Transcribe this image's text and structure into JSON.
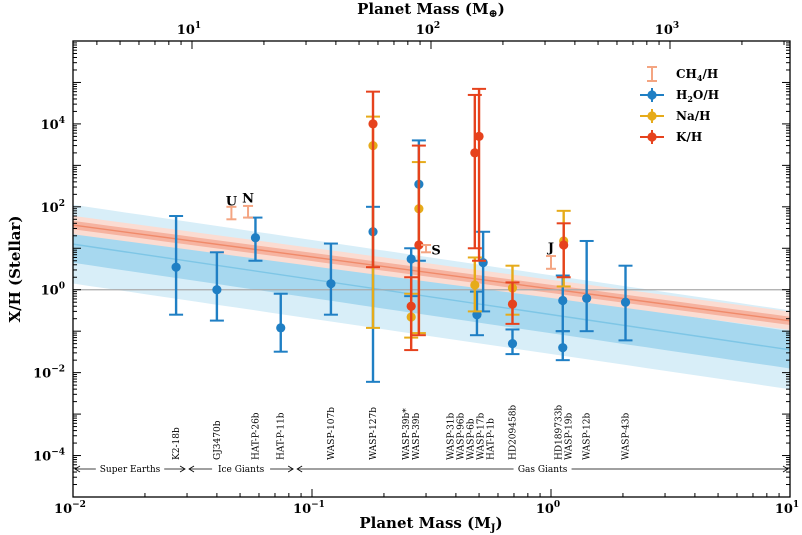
{
  "chart_data": {
    "type": "scatter",
    "xscale": "log",
    "yscale": "log",
    "xlim": [
      0.01,
      10
    ],
    "ylim": [
      1e-05,
      1000000
    ],
    "xlabel": "Planet Mass (M",
    "xlabel_sub": "J",
    "ylabel": "X/H (Stellar)",
    "x2label": "Planet Mass (M",
    "x2label_sym": "⊕",
    "x_ticks": [
      {
        "value": 0.01,
        "base": "10",
        "exp": "−2"
      },
      {
        "value": 0.1,
        "base": "10",
        "exp": "−1"
      },
      {
        "value": 1,
        "base": "10",
        "exp": "0"
      },
      {
        "value": 10,
        "base": "10",
        "exp": "1"
      }
    ],
    "x2_ticks": [
      {
        "value": 10,
        "base": "10",
        "exp": "1"
      },
      {
        "value": 100,
        "base": "10",
        "exp": "2"
      },
      {
        "value": 1000,
        "base": "10",
        "exp": "3"
      }
    ],
    "earth_per_jupiter": 317.8,
    "y_ticks": [
      {
        "value": 0.0001,
        "base": "10",
        "exp": "−4"
      },
      {
        "value": 0.01,
        "base": "10",
        "exp": "−2"
      },
      {
        "value": 1,
        "base": "10",
        "exp": "0"
      },
      {
        "value": 100,
        "base": "10",
        "exp": "2"
      },
      {
        "value": 10000,
        "base": "10",
        "exp": "4"
      }
    ],
    "reference_line": 1,
    "colors": {
      "ch4": "#f4a582",
      "h2o": "#1f7fc4",
      "na": "#e6ab1a",
      "k": "#e6421d",
      "h2o_fit": "#7ec6e6",
      "h2o_band_inner": "#a7d8ef",
      "h2o_band_outer": "#d8eef8",
      "ch4_fit": "#f08a6a",
      "ch4_band_inner": "#f6b3a0",
      "ch4_band_outer": "#fbdcd2"
    },
    "fits": {
      "ch4": {
        "slope": -0.77,
        "intercept_log10": 0.02,
        "band_inner": 0.1,
        "band_outer": 0.22
      },
      "h2o": {
        "slope": -0.85,
        "intercept_log10": -0.6,
        "band_inner": 0.45,
        "band_outer": 0.95
      }
    },
    "legend": [
      {
        "key": "ch4",
        "label": "CH",
        "sub": "4",
        "tail": "/H",
        "marker": "limit"
      },
      {
        "key": "h2o",
        "label": "H",
        "sub": "2",
        "tail": "O/H",
        "marker": "point"
      },
      {
        "key": "na",
        "label": "Na/H",
        "sub": "",
        "tail": "",
        "marker": "point"
      },
      {
        "key": "k",
        "label": "K/H",
        "sub": "",
        "tail": "",
        "marker": "point"
      }
    ],
    "solar_system": [
      {
        "label": "U",
        "x": 0.046,
        "y": 60,
        "lo": 50,
        "hi": 100,
        "label_dy": -0.35
      },
      {
        "label": "N",
        "x": 0.054,
        "y": 70,
        "lo": 55,
        "hi": 105,
        "label_dy": -0.35
      },
      {
        "label": "S",
        "x": 0.3,
        "y": 10,
        "lo": 8,
        "hi": 12,
        "label_dy": 0.05
      },
      {
        "label": "J",
        "x": 1.0,
        "y": 4.5,
        "lo": 3.2,
        "hi": 6.5,
        "label_dy": -0.35
      }
    ],
    "h2o_points": [
      {
        "x": 0.027,
        "y": 3.5,
        "lo": 0.25,
        "hi": 60
      },
      {
        "x": 0.04,
        "y": 1.0,
        "lo": 0.18,
        "hi": 8.0
      },
      {
        "x": 0.058,
        "y": 18,
        "lo": 5,
        "hi": 55
      },
      {
        "x": 0.074,
        "y": 0.12,
        "lo": 0.032,
        "hi": 0.8
      },
      {
        "x": 0.12,
        "y": 1.4,
        "lo": 0.25,
        "hi": 13
      },
      {
        "x": 0.18,
        "y": 25,
        "lo": 0.006,
        "hi": 100
      },
      {
        "x": 0.26,
        "y": 5.5,
        "lo": 0.7,
        "hi": 10
      },
      {
        "x": 0.28,
        "y": 350,
        "lo": 5,
        "hi": 4000
      },
      {
        "x": 0.49,
        "y": 0.25,
        "lo": 0.08,
        "hi": 0.9
      },
      {
        "x": 0.52,
        "y": 4.5,
        "lo": 0.3,
        "hi": 25
      },
      {
        "x": 0.69,
        "y": 0.05,
        "lo": 0.028,
        "hi": 0.11
      },
      {
        "x": 1.12,
        "y": 0.55,
        "lo": 0.1,
        "hi": 2.2
      },
      {
        "x": 1.12,
        "y": 0.04,
        "lo": 0.02,
        "hi": 0.1
      },
      {
        "x": 1.41,
        "y": 0.62,
        "lo": 0.1,
        "hi": 15
      },
      {
        "x": 2.05,
        "y": 0.5,
        "lo": 0.06,
        "hi": 3.8
      }
    ],
    "na_points": [
      {
        "x": 0.18,
        "y": 3000,
        "lo": 0.12,
        "hi": 15000
      },
      {
        "x": 0.26,
        "y": 0.22,
        "lo": 0.07,
        "hi": 0.8
      },
      {
        "x": 0.28,
        "y": 90,
        "lo": 0.09,
        "hi": 1200
      },
      {
        "x": 0.48,
        "y": 1.3,
        "lo": 0.3,
        "hi": 6
      },
      {
        "x": 0.69,
        "y": 1.1,
        "lo": 0.25,
        "hi": 3.8
      },
      {
        "x": 1.13,
        "y": 15,
        "lo": 1.2,
        "hi": 80
      }
    ],
    "k_points": [
      {
        "x": 0.18,
        "y": 10000,
        "lo": 3.5,
        "hi": 60000
      },
      {
        "x": 0.26,
        "y": 0.4,
        "lo": 0.035,
        "hi": 2
      },
      {
        "x": 0.28,
        "y": 12,
        "lo": 0.08,
        "hi": 3000
      },
      {
        "x": 0.48,
        "y": 2000,
        "lo": 10,
        "hi": 50000
      },
      {
        "x": 0.5,
        "y": 5000,
        "lo": 5,
        "hi": 70000
      },
      {
        "x": 0.69,
        "y": 0.45,
        "lo": 0.15,
        "hi": 1.5
      },
      {
        "x": 1.13,
        "y": 12,
        "lo": 2,
        "hi": 40
      }
    ],
    "planet_labels": [
      {
        "x": 0.027,
        "lines": [
          "K2-18b"
        ]
      },
      {
        "x": 0.04,
        "lines": [
          "GJ3470b"
        ]
      },
      {
        "x": 0.058,
        "lines": [
          "HAT-P-26b"
        ]
      },
      {
        "x": 0.074,
        "lines": [
          "HAT-P-11b"
        ]
      },
      {
        "x": 0.12,
        "lines": [
          "WASP-107b"
        ]
      },
      {
        "x": 0.18,
        "lines": [
          "WASP-127b"
        ]
      },
      {
        "x": 0.26,
        "lines": [
          "WASP-39b*",
          "WASP-39b"
        ]
      },
      {
        "x": 0.46,
        "lines": [
          "WASP-31b",
          "WASP-96b",
          "WASP-6b",
          "WASP-17b",
          "HAT-P-1b"
        ]
      },
      {
        "x": 0.69,
        "lines": [
          "HD209458b"
        ]
      },
      {
        "x": 1.13,
        "lines": [
          "HD189733b",
          "WASP-19b"
        ]
      },
      {
        "x": 1.41,
        "lines": [
          "WASP-12b"
        ]
      },
      {
        "x": 2.05,
        "lines": [
          "WASP-43b"
        ]
      }
    ],
    "regions": [
      {
        "label": "Super Earths",
        "x0": 0.01,
        "x1": 0.03
      },
      {
        "label": "Ice Giants",
        "x0": 0.03,
        "x1": 0.085
      },
      {
        "label": "Gas Giants",
        "x0": 0.085,
        "x1": 10
      }
    ]
  }
}
